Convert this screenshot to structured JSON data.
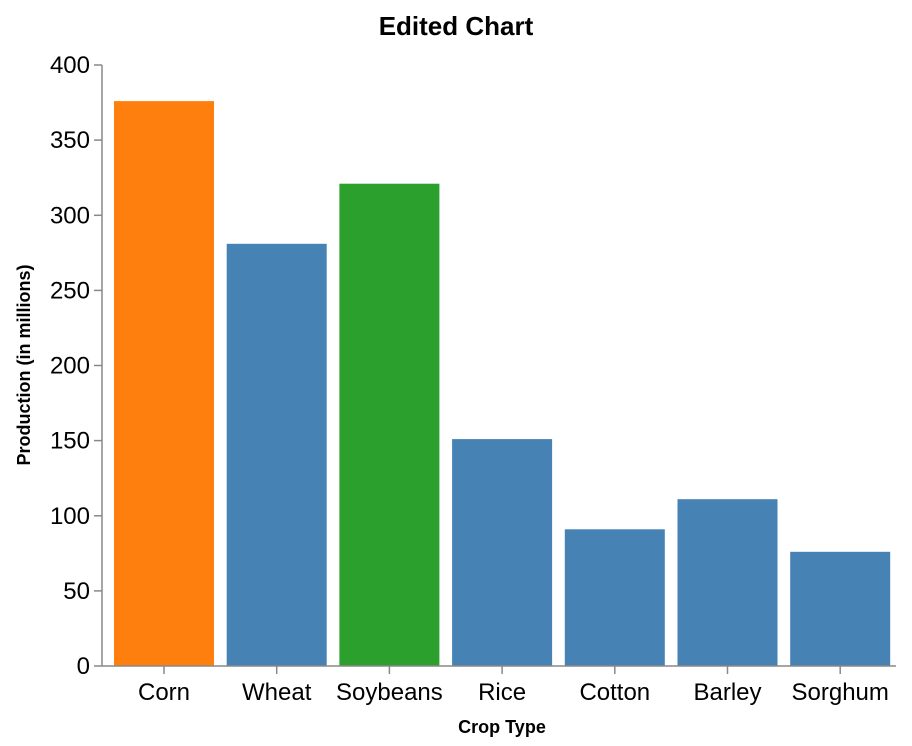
{
  "chart_data": {
    "type": "bar",
    "title": "Edited Chart",
    "xlabel": "Crop Type",
    "ylabel": "Production (in millions)",
    "categories": [
      "Corn",
      "Wheat",
      "Soybeans",
      "Rice",
      "Cotton",
      "Barley",
      "Sorghum"
    ],
    "values": [
      376,
      281,
      321,
      151,
      91,
      111,
      76
    ],
    "colors": [
      "#ff7f0e",
      "#4682b4",
      "#2ca02c",
      "#4682b4",
      "#4682b4",
      "#4682b4",
      "#4682b4"
    ],
    "ylim": [
      0,
      400
    ],
    "yticks": [
      0,
      50,
      100,
      150,
      200,
      250,
      300,
      350,
      400
    ],
    "grid": false,
    "legend": "none"
  }
}
